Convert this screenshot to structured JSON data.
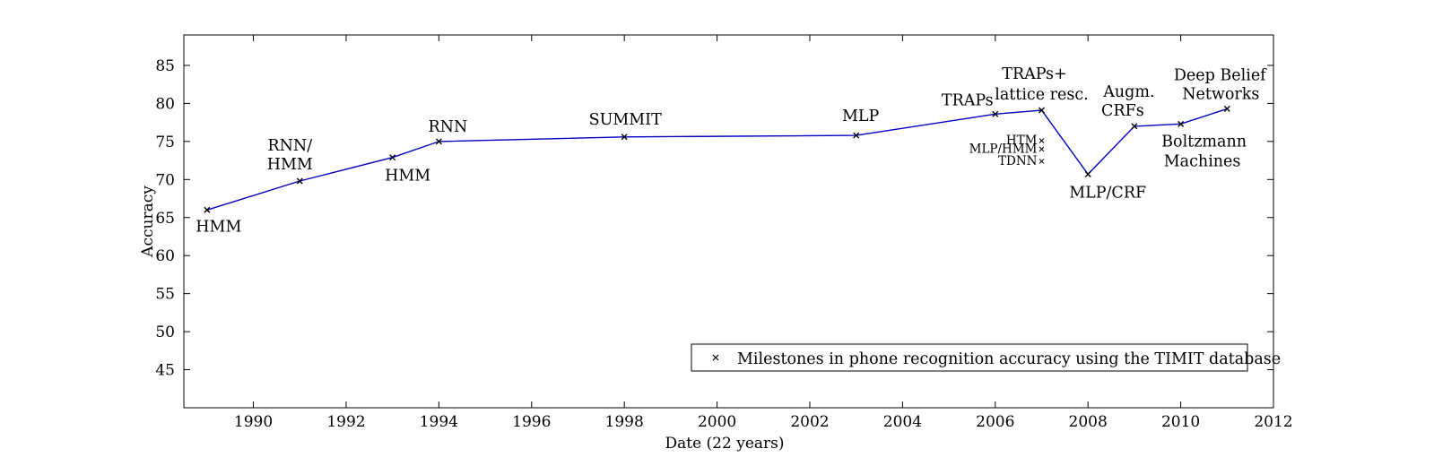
{
  "chart_data": {
    "type": "line",
    "xlabel": "Date (22 years)",
    "ylabel": "Accuracy",
    "xlim": [
      1988.5,
      2012
    ],
    "ylim": [
      40,
      89
    ],
    "xticks": [
      "1990",
      "1992",
      "1994",
      "1996",
      "1998",
      "2000",
      "2002",
      "2004",
      "2006",
      "2008",
      "2010",
      "2012"
    ],
    "yticks": [
      "45",
      "50",
      "55",
      "60",
      "65",
      "70",
      "75",
      "80",
      "85"
    ],
    "grid": false,
    "legend_position": "bottom-right",
    "series": [
      {
        "name": "Milestones in phone recognition accuracy using the TIMIT database",
        "color": "#0000c0",
        "marker": "x",
        "x": [
          1989,
          1991,
          1993,
          1994,
          1998,
          2003,
          2006,
          2007,
          2008,
          2009,
          2010,
          2011
        ],
        "y": [
          66.0,
          69.8,
          72.9,
          75.0,
          75.6,
          75.8,
          78.6,
          79.1,
          70.7,
          77.0,
          77.3,
          79.3
        ]
      }
    ],
    "annotations": [
      {
        "text": "HMM",
        "x": 1989,
        "y": 66.0
      },
      {
        "text": "RNN/",
        "x": 1991,
        "y": 69.8
      },
      {
        "text": "HMM",
        "x": 1991,
        "y": 69.8
      },
      {
        "text": "HMM",
        "x": 1993,
        "y": 72.9
      },
      {
        "text": "RNN",
        "x": 1994,
        "y": 75.0
      },
      {
        "text": "SUMMIT",
        "x": 1998,
        "y": 75.6
      },
      {
        "text": "MLP",
        "x": 2003,
        "y": 75.8
      },
      {
        "text": "TRAPs",
        "x": 2006,
        "y": 78.6
      },
      {
        "text": "TRAPs+",
        "x": 2007,
        "y": 79.1
      },
      {
        "text": "lattice resc.",
        "x": 2007,
        "y": 79.1
      },
      {
        "text": "MLP/CRF",
        "x": 2008,
        "y": 70.7
      },
      {
        "text": "Augm.",
        "x": 2009,
        "y": 77.0
      },
      {
        "text": "CRFs",
        "x": 2009,
        "y": 77.0
      },
      {
        "text": "Boltzmann",
        "x": 2010,
        "y": 77.3
      },
      {
        "text": "Machines",
        "x": 2010,
        "y": 77.3
      },
      {
        "text": "Deep Belief",
        "x": 2011,
        "y": 79.3
      },
      {
        "text": "Networks",
        "x": 2011,
        "y": 79.3
      }
    ],
    "side_points": [
      {
        "text": "HTM",
        "x": 2007,
        "y": 75.1
      },
      {
        "text": "MLP/HMM",
        "x": 2007,
        "y": 74.0
      },
      {
        "text": "TDNN",
        "x": 2007,
        "y": 72.4
      }
    ]
  }
}
